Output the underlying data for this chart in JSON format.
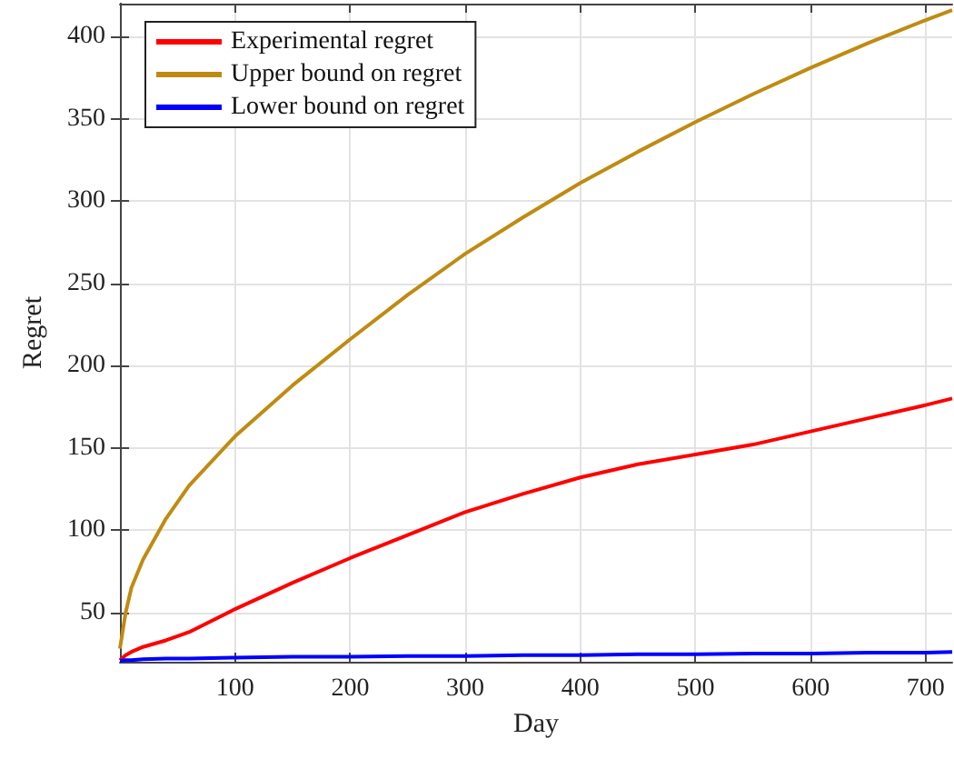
{
  "chart_data": {
    "type": "line",
    "xlabel": "Day",
    "ylabel": "Regret",
    "xlim": [
      0,
      723
    ],
    "ylim": [
      20,
      420
    ],
    "xticks": [
      100,
      200,
      300,
      400,
      500,
      600,
      700
    ],
    "yticks": [
      50,
      100,
      150,
      200,
      250,
      300,
      350,
      400
    ],
    "grid": true,
    "legend": "top left",
    "marker": "none",
    "line_style": "solid",
    "x": [
      0,
      5,
      10,
      20,
      40,
      60,
      100,
      150,
      200,
      250,
      300,
      350,
      400,
      450,
      500,
      550,
      600,
      650,
      700,
      723
    ],
    "series": [
      {
        "name": "Experimental regret",
        "color": "#ff0000",
        "values": [
          21,
          24,
          26,
          29,
          33,
          38,
          52,
          68,
          83,
          97,
          111,
          122,
          132,
          140,
          146,
          152,
          160,
          168,
          176,
          180
        ]
      },
      {
        "name": "Upper bound on regret",
        "color": "#bf8b11",
        "values": [
          28,
          50,
          65,
          82,
          107,
          127,
          157,
          188,
          216,
          243,
          268,
          290,
          311,
          330,
          348,
          365,
          381,
          396,
          410,
          416
        ]
      },
      {
        "name": "Lower bound on regret",
        "color": "#0000ff",
        "values": [
          20.5,
          21,
          21,
          21.5,
          22,
          22,
          22.5,
          23,
          23,
          23.5,
          23.5,
          24,
          24,
          24.5,
          24.5,
          25,
          25,
          25.5,
          25.5,
          26
        ]
      }
    ]
  }
}
